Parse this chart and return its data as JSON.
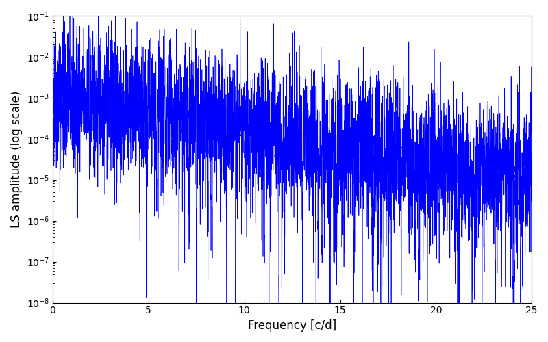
{
  "title": "",
  "xlabel": "Frequency [c/d]",
  "ylabel": "LS amplitude (log scale)",
  "xlim": [
    0,
    25
  ],
  "ylim": [
    1e-08,
    0.1
  ],
  "line_color": "#0000ff",
  "linewidth": 0.5,
  "figsize": [
    8.0,
    5.0
  ],
  "dpi": 100,
  "background_color": "#ffffff",
  "seed": 42,
  "n_points": 5000,
  "freq_max": 25.0,
  "base_amplitude": 0.001,
  "decay_rate": 0.18
}
